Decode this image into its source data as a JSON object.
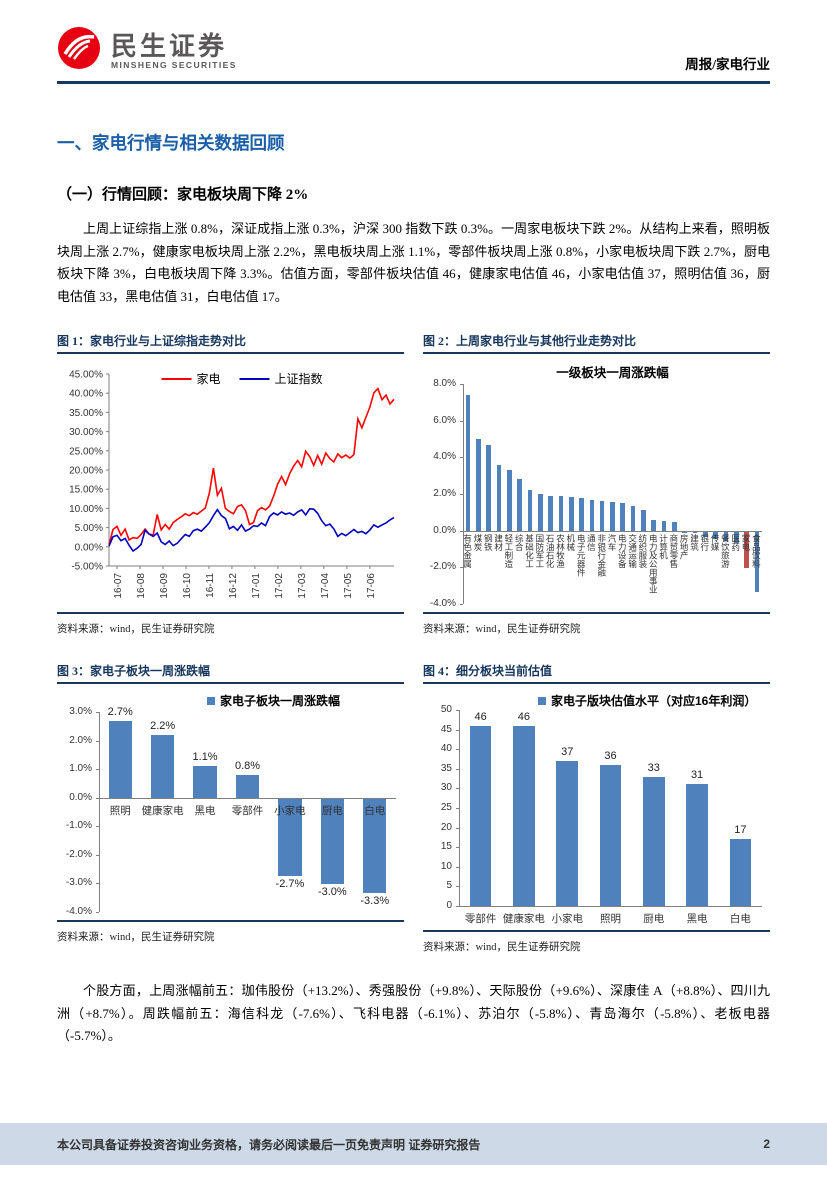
{
  "header": {
    "brand_cn": "民生证券",
    "brand_en": "MINSHENG SECURITIES",
    "doc_type": "周报/家电行业"
  },
  "section_title": "一、家电行情与相关数据回顾",
  "subsection_title": "（一）行情回顾：家电板块周下降 2%",
  "paragraph_review": "上周上证综指上涨 0.8%，深证成指上涨 0.3%，沪深 300 指数下跌 0.3%。一周家电板块下跌 2%。从结构上来看，照明板块周上涨 2.7%，健康家电板块周上涨 2.2%，黑电板块周上涨 1.1%，零部件板块周上涨 0.8%，小家电板块周下跌 2.7%，厨电板块下降 3%，白电板块周下降 3.3%。估值方面，零部件板块估值 46，健康家电估值 46，小家电估值 37，照明估值 36，厨电估值 33，黑电估值 31，白电估值 17。",
  "paragraph_stocks": "个股方面，上周涨幅前五：珈伟股份（+13.2%）、秀强股份（+9.8%）、天际股份（+9.6%）、深康佳 A（+8.8%）、四川九洲（+8.7%）。周跌幅前五：海信科龙（-7.6%）、飞科电器（-6.1%）、苏泊尔（-5.8%）、青岛海尔（-5.8%）、老板电器（-5.7%）。",
  "figures": [
    {
      "caption": "图 1：家电行业与上证综指走势对比",
      "source": "资料来源：wind，民生证券研究院"
    },
    {
      "caption": "图 2：上周家电行业与其他行业走势对比",
      "source": "资料来源：wind，民生证券研究院"
    },
    {
      "caption": "图 3：家电子板块一周涨跌幅",
      "source": "资料来源：wind，民生证券研究院"
    },
    {
      "caption": "图 4：细分板块当前估值",
      "source": "资料来源：wind，民生证券研究院"
    }
  ],
  "footer": {
    "disclaimer": "本公司具备证券投资咨询业务资格，请务必阅读最后一页免责声明 证券研究报告",
    "page": "2"
  },
  "colors": {
    "accent_navy": "#17375E",
    "heading_blue": "#1B5FA8",
    "bar_blue": "#4F81BD",
    "bar_red": "#C0504D",
    "line_red": "#FF0000",
    "line_blue": "#0000C0",
    "logo_red": "#E60012",
    "footer_band": "#CDD9E6"
  },
  "chart_data": [
    {
      "type": "line",
      "legend": [
        {
          "name": "家电",
          "color": "#FF0000"
        },
        {
          "name": "上证指数",
          "color": "#0000C0"
        }
      ],
      "x_ticks": [
        "16-07",
        "16-08",
        "16-09",
        "16-10",
        "16-11",
        "16-12",
        "17-01",
        "17-02",
        "17-03",
        "17-04",
        "17-05",
        "17-06"
      ],
      "ylim": [
        -5,
        45
      ],
      "ytick_step": 5,
      "ytick_format": "percent2",
      "grid": false,
      "series": [
        {
          "name": "家电",
          "color": "#FF0000",
          "values": [
            0.5,
            4.5,
            5.3,
            3.0,
            4.6,
            1.8,
            2.4,
            2.2,
            3.2,
            4.6,
            3.3,
            3.1,
            8.4,
            4.4,
            5.8,
            4.6,
            6.3,
            7.1,
            7.8,
            8.6,
            8.1,
            8.9,
            8.5,
            9.3,
            10.1,
            14.0,
            20.5,
            13.4,
            15.2,
            10.0,
            9.2,
            8.6,
            10.5,
            10.9,
            9.4,
            5.8,
            6.3,
            9.4,
            10.2,
            9.6,
            10.6,
            13.2,
            16.3,
            18.3,
            16.2,
            19.0,
            21.0,
            22.5,
            20.8,
            24.9,
            23.5,
            21.2,
            23.8,
            21.5,
            24.4,
            23.0,
            22.1,
            24.2,
            23.2,
            23.9,
            23.1,
            24.0,
            33.3,
            31.0,
            33.7,
            36.4,
            40.1,
            41.2,
            38.3,
            39.5,
            37.2,
            38.4
          ]
        },
        {
          "name": "上证指数",
          "color": "#0000C0",
          "values": [
            0.2,
            2.6,
            3.0,
            1.6,
            2.2,
            0.4,
            -1.1,
            -0.4,
            0.6,
            4.3,
            3.3,
            2.7,
            3.6,
            1.3,
            0.6,
            1.5,
            0.3,
            0.9,
            2.1,
            3.2,
            2.7,
            4.2,
            4.6,
            4.1,
            5.1,
            6.3,
            8.1,
            9.7,
            8.1,
            7.4,
            4.7,
            5.3,
            4.3,
            5.7,
            4.1,
            4.6,
            5.5,
            5.3,
            6.2,
            5.5,
            7.9,
            8.8,
            8.3,
            9.1,
            8.5,
            8.8,
            8.2,
            9.1,
            9.6,
            8.3,
            9.9,
            9.8,
            8.7,
            6.8,
            5.5,
            5.9,
            4.7,
            2.7,
            3.5,
            2.9,
            3.7,
            4.5,
            3.7,
            4.0,
            3.4,
            4.4,
            5.7,
            5.1,
            5.7,
            6.2,
            7.0,
            7.6
          ]
        }
      ]
    },
    {
      "type": "bar",
      "title": "一级板块一周涨跌幅",
      "categories": [
        "有色金属",
        "煤炭",
        "钢铁",
        "建材",
        "轻工制造",
        "综合",
        "基础化工",
        "国防军工",
        "石油石化",
        "农林牧渔",
        "机械",
        "电子元器件",
        "通信",
        "非银行金融",
        "汽车",
        "电力设备",
        "交通运输",
        "纺织服装",
        "电力及公用事业",
        "计算机",
        "商贸零售",
        "房地产",
        "建筑",
        "银行",
        "传媒",
        "餐饮旅游",
        "医药",
        "家电",
        "食品饮料"
      ],
      "values": [
        7.4,
        5.0,
        4.7,
        3.6,
        3.3,
        2.8,
        2.2,
        2.0,
        1.9,
        1.9,
        1.85,
        1.8,
        1.65,
        1.6,
        1.55,
        1.5,
        1.35,
        1.15,
        0.6,
        0.55,
        0.45,
        -0.05,
        -0.1,
        -0.3,
        -0.4,
        -0.5,
        -0.6,
        -2.0,
        -3.3
      ],
      "bar_color": "#4F81BD",
      "highlight_index": 27,
      "highlight_color": "#C0504D",
      "ylim": [
        -4,
        8
      ],
      "ytick_step": 2,
      "ytick_format": "percent1",
      "category_label_orientation": "vertical",
      "grid": false
    },
    {
      "type": "bar",
      "legend_label": "家电子板块一周涨跌幅",
      "categories": [
        "照明",
        "健康家电",
        "黑电",
        "零部件",
        "小家电",
        "厨电",
        "白电"
      ],
      "values": [
        2.7,
        2.2,
        1.1,
        0.8,
        -2.7,
        -3.0,
        -3.3
      ],
      "bar_color": "#4F81BD",
      "ylim": [
        -4,
        3
      ],
      "ytick_step": 1,
      "ytick_format": "percent1",
      "data_labels": "percent1",
      "category_label_orientation": "horizontal",
      "grid": false
    },
    {
      "type": "bar",
      "legend_label": "家电子版块估值水平（对应16年利润）",
      "categories": [
        "零部件",
        "健康家电",
        "小家电",
        "照明",
        "厨电",
        "黑电",
        "白电"
      ],
      "values": [
        46,
        46,
        37,
        36,
        33,
        31,
        17
      ],
      "bar_color": "#4F81BD",
      "ylim": [
        0,
        50
      ],
      "ytick_step": 5,
      "ytick_format": "int",
      "data_labels": "int",
      "category_label_orientation": "horizontal",
      "grid": false
    }
  ]
}
